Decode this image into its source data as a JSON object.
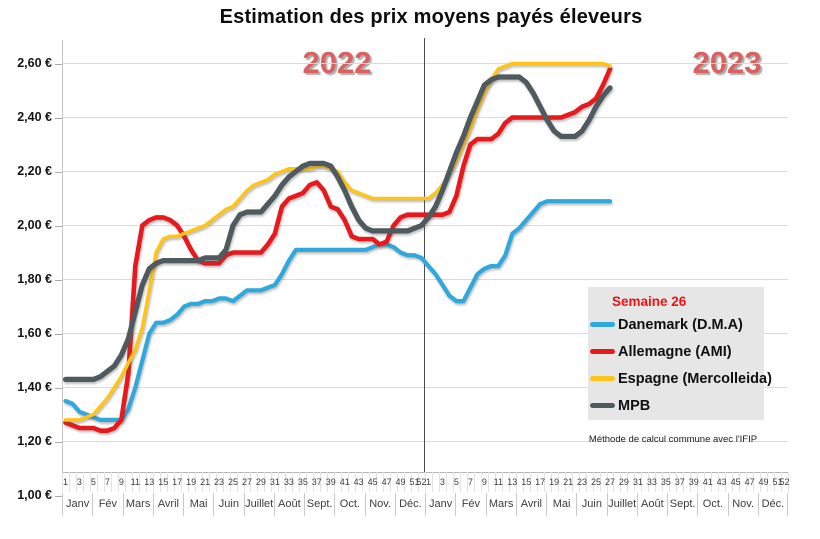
{
  "title": "Estimation des prix moyens payés éleveurs",
  "year_labels": [
    "2022",
    "2023"
  ],
  "legend": {
    "title": "Semaine 26",
    "items": [
      {
        "label": "Danemark (D.M.A)",
        "color": "#2fa8dc"
      },
      {
        "label": "Allemagne (AMI)",
        "color": "#e8191c"
      },
      {
        "label": "Espagne (Mercolleida)",
        "color": "#ffc41a"
      },
      {
        "label": "MPB",
        "color": "#4e5a5e"
      }
    ]
  },
  "note": "Méthode de calcul commune avec l'IFIP",
  "chart_data": {
    "type": "line",
    "title": "Estimation des prix moyens payés éleveurs",
    "x_axis": {
      "years": [
        "2022",
        "2023"
      ],
      "weeks_2022": 52,
      "weeks_2023": 27,
      "week_tick_labels": [
        "1",
        "3",
        "5",
        "7",
        "9",
        "11",
        "13",
        "15",
        "17",
        "19",
        "21",
        "23",
        "25",
        "27",
        "29",
        "31",
        "33",
        "35",
        "37",
        "39",
        "41",
        "43",
        "45",
        "47",
        "49",
        "51",
        "52"
      ],
      "month_labels": [
        "Janv",
        "Fév",
        "Mars",
        "Avril",
        "Mai",
        "Juin",
        "Juillet",
        "Août",
        "Sept.",
        "Oct.",
        "Nov.",
        "Déc."
      ]
    },
    "y_axis": {
      "tick_labels": [
        "2,60 €",
        "2,40 €",
        "2,20 €",
        "2,00 €",
        "1,80 €",
        "1,60 €",
        "1,40 €",
        "1,20 €",
        "1,00 €"
      ],
      "tick_values": [
        2.6,
        2.4,
        2.2,
        2.0,
        1.8,
        1.6,
        1.4,
        1.2,
        1.0
      ],
      "range": [
        1.0,
        2.6
      ],
      "grid": true,
      "currency": "EUR"
    },
    "annotations": {
      "year_separator_after_week": 52,
      "current_week": "Semaine 26"
    },
    "series": [
      {
        "name": "Danemark (D.M.A)",
        "color": "#2fa8dc",
        "values_2022": [
          1.35,
          1.34,
          1.31,
          1.3,
          1.29,
          1.28,
          1.28,
          1.28,
          1.28,
          1.32,
          1.4,
          1.5,
          1.6,
          1.64,
          1.64,
          1.65,
          1.67,
          1.7,
          1.71,
          1.71,
          1.72,
          1.72,
          1.73,
          1.73,
          1.72,
          1.74,
          1.76,
          1.76,
          1.76,
          1.77,
          1.78,
          1.82,
          1.87,
          1.91,
          1.91,
          1.91,
          1.91,
          1.91,
          1.91,
          1.91,
          1.91,
          1.91,
          1.91,
          1.91,
          1.92,
          1.93,
          1.93,
          1.92,
          1.9,
          1.89,
          1.89,
          1.88
        ],
        "values_2023": [
          1.85,
          1.82,
          1.78,
          1.74,
          1.72,
          1.72,
          1.77,
          1.82,
          1.84,
          1.85,
          1.85,
          1.89,
          1.97,
          1.99,
          2.02,
          2.05,
          2.08,
          2.09,
          2.09,
          2.09,
          2.09,
          2.09,
          2.09,
          2.09,
          2.09,
          2.09,
          2.09
        ]
      },
      {
        "name": "Allemagne (AMI)",
        "color": "#e8191c",
        "values_2022": [
          1.27,
          1.26,
          1.25,
          1.25,
          1.25,
          1.24,
          1.24,
          1.25,
          1.28,
          1.45,
          1.85,
          2.0,
          2.02,
          2.03,
          2.03,
          2.02,
          2.0,
          1.96,
          1.91,
          1.87,
          1.86,
          1.86,
          1.86,
          1.89,
          1.9,
          1.9,
          1.9,
          1.9,
          1.9,
          1.93,
          1.97,
          2.07,
          2.1,
          2.11,
          2.12,
          2.15,
          2.16,
          2.13,
          2.07,
          2.06,
          2.02,
          1.96,
          1.95,
          1.95,
          1.95,
          1.93,
          1.94,
          2.0,
          2.03,
          2.04,
          2.04,
          2.04
        ],
        "values_2023": [
          2.04,
          2.04,
          2.04,
          2.05,
          2.11,
          2.22,
          2.3,
          2.32,
          2.32,
          2.32,
          2.34,
          2.38,
          2.4,
          2.4,
          2.4,
          2.4,
          2.4,
          2.4,
          2.4,
          2.4,
          2.41,
          2.42,
          2.44,
          2.45,
          2.47,
          2.52,
          2.58
        ]
      },
      {
        "name": "Espagne (Mercolleida)",
        "color": "#ffc41a",
        "values_2022": [
          1.28,
          1.28,
          1.28,
          1.29,
          1.3,
          1.33,
          1.36,
          1.4,
          1.44,
          1.49,
          1.54,
          1.62,
          1.76,
          1.9,
          1.95,
          1.96,
          1.96,
          1.97,
          1.98,
          1.99,
          2.0,
          2.02,
          2.04,
          2.06,
          2.07,
          2.1,
          2.13,
          2.15,
          2.16,
          2.17,
          2.19,
          2.2,
          2.21,
          2.21,
          2.21,
          2.21,
          2.22,
          2.22,
          2.21,
          2.2,
          2.16,
          2.13,
          2.12,
          2.11,
          2.1,
          2.1,
          2.1,
          2.1,
          2.1,
          2.1,
          2.1,
          2.1
        ],
        "values_2023": [
          2.1,
          2.12,
          2.15,
          2.19,
          2.24,
          2.3,
          2.36,
          2.43,
          2.49,
          2.54,
          2.58,
          2.59,
          2.6,
          2.6,
          2.6,
          2.6,
          2.6,
          2.6,
          2.6,
          2.6,
          2.6,
          2.6,
          2.6,
          2.6,
          2.6,
          2.6,
          2.59
        ]
      },
      {
        "name": "MPB",
        "color": "#4e5a5e",
        "values_2022": [
          1.43,
          1.43,
          1.43,
          1.43,
          1.43,
          1.44,
          1.46,
          1.48,
          1.52,
          1.58,
          1.68,
          1.78,
          1.84,
          1.86,
          1.87,
          1.87,
          1.87,
          1.87,
          1.87,
          1.87,
          1.88,
          1.88,
          1.88,
          1.91,
          2.0,
          2.04,
          2.05,
          2.05,
          2.05,
          2.08,
          2.11,
          2.15,
          2.18,
          2.2,
          2.22,
          2.23,
          2.23,
          2.23,
          2.22,
          2.18,
          2.13,
          2.07,
          2.02,
          1.99,
          1.98,
          1.98,
          1.98,
          1.98,
          1.98,
          1.98,
          1.99,
          2.0
        ],
        "values_2023": [
          2.03,
          2.07,
          2.13,
          2.2,
          2.27,
          2.33,
          2.4,
          2.46,
          2.52,
          2.54,
          2.55,
          2.55,
          2.55,
          2.55,
          2.53,
          2.49,
          2.44,
          2.39,
          2.35,
          2.33,
          2.33,
          2.33,
          2.35,
          2.39,
          2.44,
          2.48,
          2.51
        ]
      }
    ]
  }
}
